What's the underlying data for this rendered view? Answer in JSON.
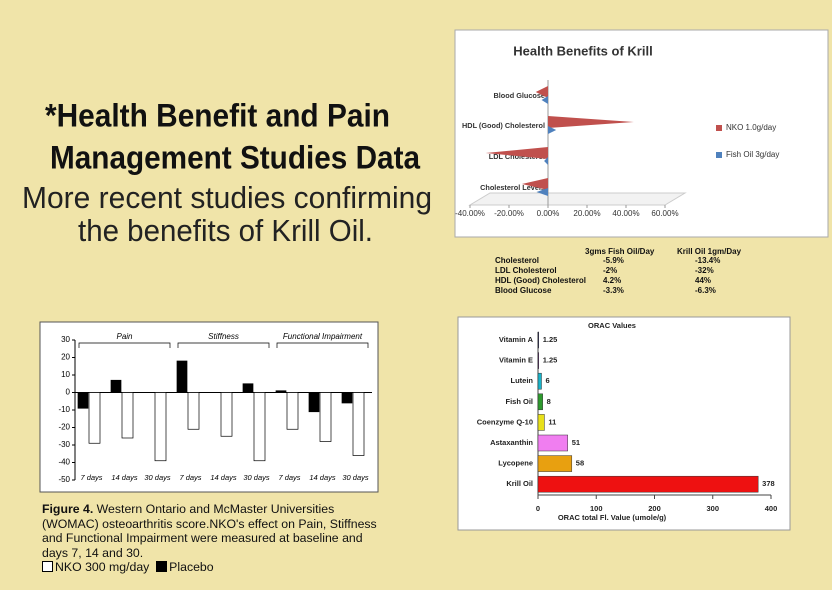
{
  "slide": {
    "title_lines": [
      "*Health Benefit and Pain",
      "Management Studies Data"
    ],
    "subtitle_lines": [
      "More recent studies confirming",
      "the benefits of Krill Oil."
    ]
  },
  "chart_data": [
    {
      "type": "cone",
      "title": "Health Benefits of Krill",
      "categories": [
        "Blood Glucose",
        "HDL (Good) Cholesterol",
        "LDL Cholesterol",
        "Cholesterol Levels"
      ],
      "series": [
        {
          "name": "NKO 1.0g/day",
          "color": "#c0504d",
          "values": [
            -6.3,
            44,
            -32,
            -13.4
          ]
        },
        {
          "name": "Fish Oil 3g/day",
          "color": "#4f81bd",
          "values": [
            -3.3,
            4.2,
            -2,
            -5.9
          ]
        }
      ],
      "xlim": [
        -40,
        60
      ],
      "xticks": [
        {
          "value": -40,
          "label": "-40.00%"
        },
        {
          "value": -20,
          "label": "-20.00%"
        },
        {
          "value": 0,
          "label": "0.00%"
        },
        {
          "value": 20,
          "label": "20.00%"
        },
        {
          "value": 40,
          "label": "40.00%"
        },
        {
          "value": 60,
          "label": "60.00%"
        }
      ],
      "legend": "right"
    },
    {
      "type": "grouped_bar",
      "groups": [
        "Pain",
        "Stiffness",
        "Functional Impairment"
      ],
      "categories": [
        "7 days",
        "14 days",
        "30 days",
        "7 days",
        "14 days",
        "30 days",
        "7 days",
        "14 days",
        "30 days"
      ],
      "series": [
        {
          "name": "NKO 300 mg/day",
          "color": "#ffffff",
          "values": [
            -29,
            -26,
            -39,
            -21,
            -25,
            -39,
            -21,
            -28,
            -36
          ]
        },
        {
          "name": "Placebo",
          "color": "#000000",
          "values": [
            -9,
            7,
            0,
            18,
            0,
            5,
            1,
            -11,
            -6
          ]
        }
      ],
      "ylim": [
        -50,
        30
      ],
      "yticks": [
        -50,
        -40,
        -30,
        -20,
        -10,
        0,
        10,
        20,
        30
      ]
    },
    {
      "type": "hbar",
      "title": "ORAC Values",
      "x_label": "ORAC total Fl. Value (umole/g)",
      "categories": [
        "Vitamin A",
        "Vitamin E",
        "Lutein",
        "Fish Oil",
        "Coenzyme Q-10",
        "Astaxanthin",
        "Lycopene",
        "Krill Oil"
      ],
      "values": [
        1.25,
        1.25,
        6,
        8,
        11,
        51,
        58,
        378
      ],
      "colors": [
        "#1a1a6e",
        "#6a1a8a",
        "#19b3c8",
        "#2e9a2e",
        "#e8e01a",
        "#f07ef0",
        "#e8a010",
        "#ee1111"
      ],
      "xlim": [
        0,
        400
      ],
      "xticks": [
        0,
        100,
        200,
        300,
        400
      ]
    }
  ],
  "krill_table": {
    "columns": [
      "3gms Fish Oil/Day",
      "Krill Oil 1gm/Day"
    ],
    "rows": [
      [
        "Cholesterol",
        "-5.9%",
        "-13.4%"
      ],
      [
        "LDL Cholesterol",
        "-2%",
        "-32%"
      ],
      [
        "HDL (Good) Cholesterol",
        "4.2%",
        "44%"
      ],
      [
        "Blood Glucose",
        "-3.3%",
        "-6.3%"
      ]
    ]
  },
  "caption": {
    "figure": "Figure 4.",
    "text": "Western Ontario and McMaster Universities (WOMAC) osteoarthritis score.NKO's effect on Pain, Stiffness and Functional Impairment were measured at baseline and days 7, 14 and 30."
  }
}
